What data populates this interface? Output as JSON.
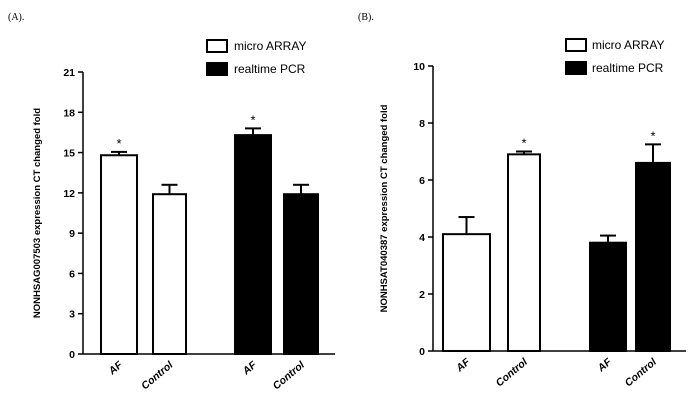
{
  "chart_data": [
    {
      "type": "bar",
      "panel_label": "(A).",
      "title": "",
      "ylabel": "NONHSAG007503 expression  CT changed fold",
      "xlabel": "",
      "ylim": [
        0,
        21
      ],
      "yticks": [
        0,
        3,
        6,
        9,
        12,
        15,
        18,
        21
      ],
      "legend": {
        "placement": "top-right",
        "entries": [
          "micro ARRAY",
          "realtime PCR"
        ]
      },
      "colors": {
        "micro ARRAY": "#ffffff",
        "realtime PCR": "#000000"
      },
      "groups": [
        {
          "series": "micro ARRAY",
          "bars": [
            {
              "category": "AF",
              "value": 14.8,
              "error": 0.25,
              "star": "*"
            },
            {
              "category": "Control",
              "value": 11.9,
              "error": 0.7,
              "star": ""
            }
          ]
        },
        {
          "series": "realtime PCR",
          "bars": [
            {
              "category": "AF",
              "value": 16.3,
              "error": 0.5,
              "star": "*"
            },
            {
              "category": "Control",
              "value": 11.9,
              "error": 0.7,
              "star": ""
            }
          ]
        }
      ]
    },
    {
      "type": "bar",
      "panel_label": "(B).",
      "title": "",
      "ylabel": "NONHSAT040387  expression  CT changed fold",
      "xlabel": "",
      "ylim": [
        0,
        10
      ],
      "yticks": [
        0,
        2,
        4,
        6,
        8,
        10
      ],
      "ytick_labels": [
        "0",
        "2",
        "4",
        "6",
        "8",
        "10"
      ],
      "legend": {
        "placement": "top-right",
        "entries": [
          "micro ARRAY",
          "realtime PCR"
        ]
      },
      "colors": {
        "micro ARRAY": "#ffffff",
        "realtime PCR": "#000000"
      },
      "groups": [
        {
          "series": "micro ARRAY",
          "bars": [
            {
              "category": "AF",
              "value": 4.1,
              "error": 0.6,
              "star": ""
            },
            {
              "category": "Control",
              "value": 6.9,
              "error": 0.1,
              "star": "*"
            }
          ]
        },
        {
          "series": "realtime PCR",
          "bars": [
            {
              "category": "AF",
              "value": 3.8,
              "error": 0.25,
              "star": ""
            },
            {
              "category": "Control",
              "value": 6.6,
              "error": 0.65,
              "star": "*"
            }
          ]
        }
      ]
    }
  ]
}
